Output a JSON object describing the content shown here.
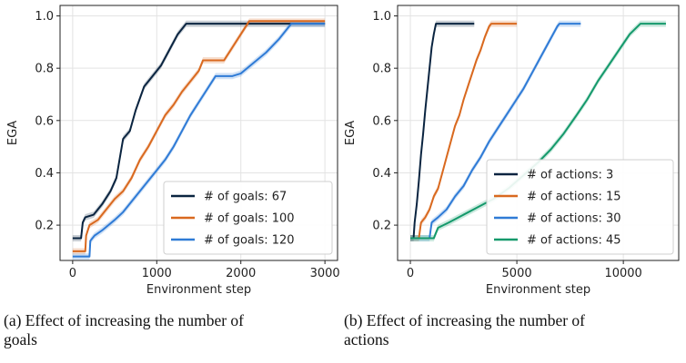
{
  "captions": {
    "a": [
      "(a) Effect of increasing the number of",
      "goals"
    ],
    "b": [
      "(b) Effect of increasing the number of",
      "actions"
    ]
  },
  "chart_data": [
    {
      "type": "line",
      "ylabel": "EGA",
      "xlabel": "Environment step",
      "xlim": [
        -150,
        3150
      ],
      "ylim": [
        0.065,
        1.04
      ],
      "xticks": [
        0,
        1000,
        2000,
        3000
      ],
      "xtick_labels": [
        "0",
        "1000",
        "2000",
        "3000"
      ],
      "yticks": [
        0.2,
        0.4,
        0.6,
        0.8,
        1.0
      ],
      "ytick_labels": [
        "0.2",
        "0.4",
        "0.6",
        "0.8",
        "1.0"
      ],
      "grid": true,
      "legend_position": "bottom-right",
      "series": [
        {
          "name": "# of goals: 67",
          "color": "#0a2440",
          "points": [
            [
              0,
              0.15
            ],
            [
              100,
              0.15
            ],
            [
              120,
              0.21
            ],
            [
              150,
              0.23
            ],
            [
              250,
              0.24
            ],
            [
              350,
              0.28
            ],
            [
              450,
              0.33
            ],
            [
              520,
              0.38
            ],
            [
              600,
              0.53
            ],
            [
              680,
              0.56
            ],
            [
              750,
              0.64
            ],
            [
              850,
              0.73
            ],
            [
              950,
              0.77
            ],
            [
              1050,
              0.81
            ],
            [
              1150,
              0.87
            ],
            [
              1250,
              0.93
            ],
            [
              1350,
              0.97
            ],
            [
              2000,
              0.97
            ],
            [
              3000,
              0.97
            ]
          ]
        },
        {
          "name": "# of goals: 100",
          "color": "#d9691f",
          "points": [
            [
              0,
              0.1
            ],
            [
              150,
              0.1
            ],
            [
              160,
              0.16
            ],
            [
              200,
              0.2
            ],
            [
              300,
              0.22
            ],
            [
              400,
              0.26
            ],
            [
              500,
              0.3
            ],
            [
              600,
              0.33
            ],
            [
              700,
              0.38
            ],
            [
              800,
              0.45
            ],
            [
              900,
              0.5
            ],
            [
              1000,
              0.56
            ],
            [
              1100,
              0.62
            ],
            [
              1200,
              0.66
            ],
            [
              1300,
              0.71
            ],
            [
              1400,
              0.75
            ],
            [
              1500,
              0.79
            ],
            [
              1550,
              0.83
            ],
            [
              1800,
              0.83
            ],
            [
              1900,
              0.88
            ],
            [
              2000,
              0.93
            ],
            [
              2100,
              0.98
            ],
            [
              3000,
              0.98
            ]
          ]
        },
        {
          "name": "# of goals: 120",
          "color": "#2f7bd6",
          "points": [
            [
              0,
              0.08
            ],
            [
              200,
              0.08
            ],
            [
              210,
              0.14
            ],
            [
              260,
              0.16
            ],
            [
              350,
              0.18
            ],
            [
              500,
              0.22
            ],
            [
              600,
              0.25
            ],
            [
              700,
              0.29
            ],
            [
              800,
              0.33
            ],
            [
              900,
              0.37
            ],
            [
              1000,
              0.41
            ],
            [
              1100,
              0.45
            ],
            [
              1200,
              0.5
            ],
            [
              1300,
              0.56
            ],
            [
              1400,
              0.62
            ],
            [
              1500,
              0.67
            ],
            [
              1600,
              0.72
            ],
            [
              1700,
              0.77
            ],
            [
              1900,
              0.77
            ],
            [
              2000,
              0.78
            ],
            [
              2150,
              0.82
            ],
            [
              2300,
              0.86
            ],
            [
              2450,
              0.91
            ],
            [
              2600,
              0.97
            ],
            [
              3000,
              0.97
            ]
          ]
        }
      ]
    },
    {
      "type": "line",
      "ylabel": "EGA",
      "xlabel": "Environment step",
      "xlim": [
        -600,
        12600
      ],
      "ylim": [
        0.065,
        1.04
      ],
      "xticks": [
        0,
        5000,
        10000
      ],
      "xtick_labels": [
        "0",
        "5000",
        "10000"
      ],
      "yticks": [
        0.2,
        0.4,
        0.6,
        0.8,
        1.0
      ],
      "ytick_labels": [
        "0.2",
        "0.4",
        "0.6",
        "0.8",
        "1.0"
      ],
      "grid": true,
      "legend_position": "bottom-right",
      "series": [
        {
          "name": "# of actions: 3",
          "color": "#0a2440",
          "points": [
            [
              0,
              0.15
            ],
            [
              150,
              0.15
            ],
            [
              200,
              0.21
            ],
            [
              300,
              0.28
            ],
            [
              400,
              0.37
            ],
            [
              500,
              0.47
            ],
            [
              600,
              0.55
            ],
            [
              700,
              0.64
            ],
            [
              800,
              0.72
            ],
            [
              900,
              0.8
            ],
            [
              1000,
              0.88
            ],
            [
              1100,
              0.93
            ],
            [
              1200,
              0.97
            ],
            [
              3000,
              0.97
            ]
          ]
        },
        {
          "name": "# of actions: 15",
          "color": "#d9691f",
          "points": [
            [
              0,
              0.15
            ],
            [
              400,
              0.15
            ],
            [
              500,
              0.21
            ],
            [
              700,
              0.23
            ],
            [
              900,
              0.26
            ],
            [
              1100,
              0.31
            ],
            [
              1300,
              0.34
            ],
            [
              1500,
              0.4
            ],
            [
              1700,
              0.46
            ],
            [
              1900,
              0.52
            ],
            [
              2100,
              0.58
            ],
            [
              2300,
              0.62
            ],
            [
              2500,
              0.68
            ],
            [
              2700,
              0.73
            ],
            [
              2900,
              0.78
            ],
            [
              3100,
              0.83
            ],
            [
              3300,
              0.87
            ],
            [
              3500,
              0.92
            ],
            [
              3700,
              0.96
            ],
            [
              3800,
              0.97
            ],
            [
              5000,
              0.97
            ]
          ]
        },
        {
          "name": "# of actions: 30",
          "color": "#2f7bd6",
          "points": [
            [
              0,
              0.15
            ],
            [
              900,
              0.15
            ],
            [
              1000,
              0.21
            ],
            [
              1300,
              0.23
            ],
            [
              1700,
              0.26
            ],
            [
              2100,
              0.31
            ],
            [
              2500,
              0.35
            ],
            [
              2900,
              0.41
            ],
            [
              3300,
              0.46
            ],
            [
              3700,
              0.52
            ],
            [
              4100,
              0.57
            ],
            [
              4500,
              0.62
            ],
            [
              4900,
              0.67
            ],
            [
              5300,
              0.72
            ],
            [
              5700,
              0.78
            ],
            [
              6100,
              0.84
            ],
            [
              6500,
              0.9
            ],
            [
              6900,
              0.96
            ],
            [
              7000,
              0.97
            ],
            [
              8000,
              0.97
            ]
          ]
        },
        {
          "name": "# of actions: 45",
          "color": "#14996b",
          "points": [
            [
              0,
              0.15
            ],
            [
              1100,
              0.15
            ],
            [
              1300,
              0.19
            ],
            [
              1800,
              0.21
            ],
            [
              2500,
              0.24
            ],
            [
              3200,
              0.27
            ],
            [
              3900,
              0.3
            ],
            [
              4600,
              0.34
            ],
            [
              5300,
              0.39
            ],
            [
              6000,
              0.44
            ],
            [
              6600,
              0.49
            ],
            [
              7200,
              0.55
            ],
            [
              7800,
              0.62
            ],
            [
              8300,
              0.68
            ],
            [
              8800,
              0.75
            ],
            [
              9300,
              0.81
            ],
            [
              9800,
              0.87
            ],
            [
              10300,
              0.93
            ],
            [
              10800,
              0.97
            ],
            [
              12000,
              0.97
            ]
          ]
        }
      ]
    }
  ]
}
